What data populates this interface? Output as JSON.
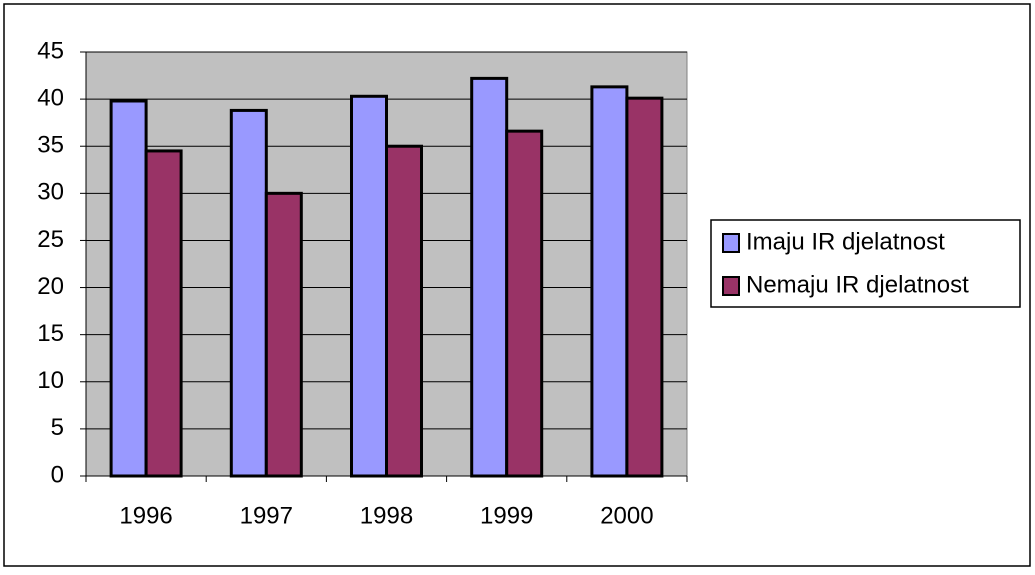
{
  "chart_data": {
    "type": "bar",
    "categories": [
      "1996",
      "1997",
      "1998",
      "1999",
      "2000"
    ],
    "series": [
      {
        "name": "Imaju IR djelatnost",
        "color": "#9999ff",
        "values": [
          39.8,
          38.8,
          40.3,
          42.2,
          41.3
        ]
      },
      {
        "name": "Nemaju IR djelatnost",
        "color": "#993366",
        "values": [
          34.5,
          30,
          35,
          36.6,
          40.1
        ]
      }
    ],
    "ylim": [
      0,
      45
    ],
    "yticks": [
      0,
      5,
      10,
      15,
      20,
      25,
      30,
      35,
      40,
      45
    ],
    "grid": true,
    "legend": "right"
  }
}
